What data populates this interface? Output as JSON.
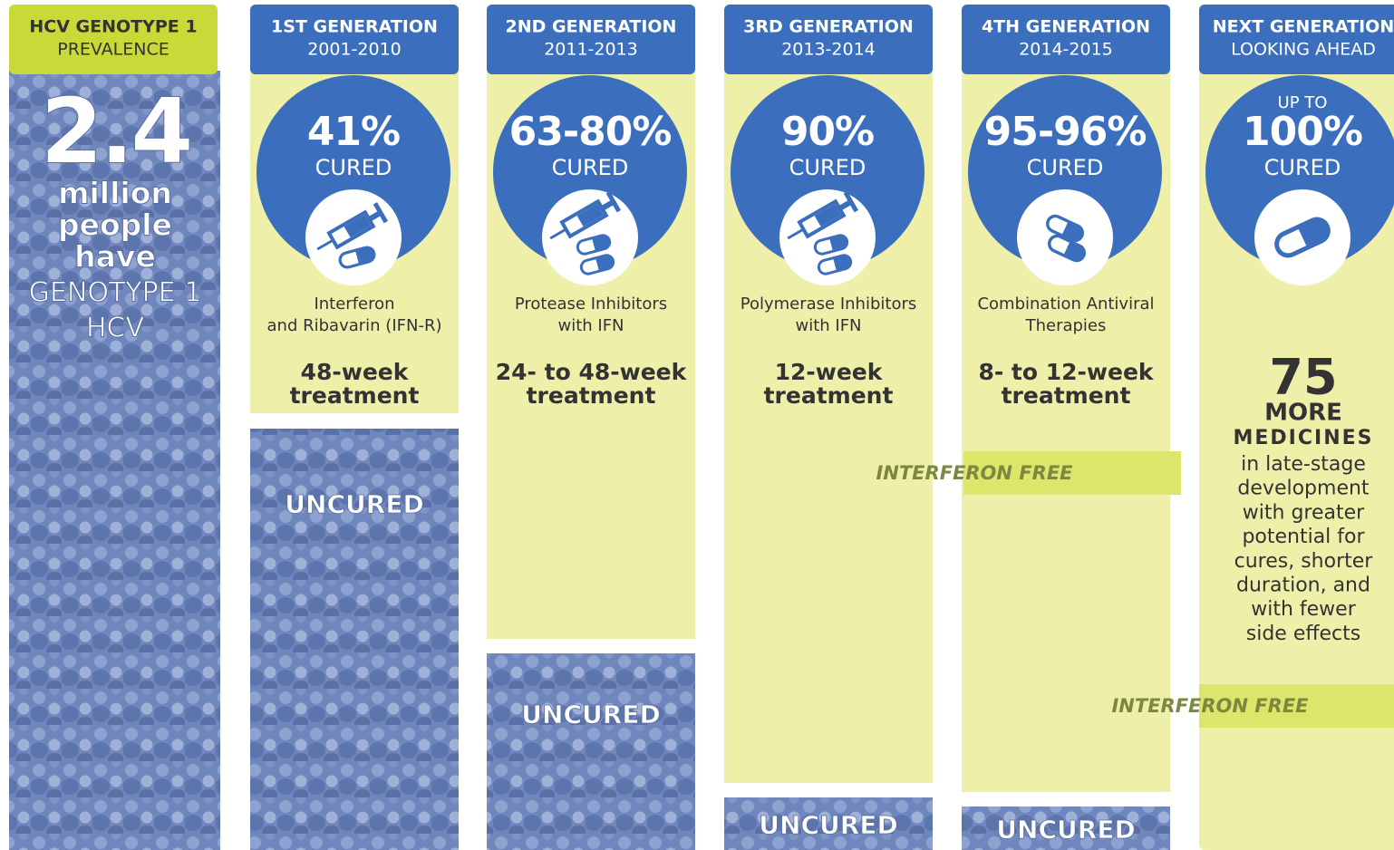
{
  "prevalence": {
    "header": [
      "HCV GENOTYPE 1",
      "PREVALENCE"
    ],
    "number": "2.4",
    "lines": [
      "million",
      "people",
      "have",
      "GENOTYPE 1",
      "HCV"
    ]
  },
  "generations": [
    {
      "header": [
        "1ST GENERATION",
        "2001-2010"
      ],
      "percent": "41%",
      "cured": "CURED",
      "therapy": [
        "Interferon",
        "and Ribavarin (IFN-R)"
      ],
      "treatment": [
        "48-week",
        "treatment"
      ],
      "uncured": "UNCURED"
    },
    {
      "header": [
        "2ND GENERATION",
        "2011-2013"
      ],
      "percent": "63-80%",
      "cured": "CURED",
      "therapy": [
        "Protease Inhibitors",
        "with IFN"
      ],
      "treatment": [
        "24- to 48-week",
        "treatment"
      ],
      "uncured": "UNCURED"
    },
    {
      "header": [
        "3RD GENERATION",
        "2013-2014"
      ],
      "percent": "90%",
      "cured": "CURED",
      "therapy": [
        "Polymerase Inhibitors",
        "with IFN"
      ],
      "treatment": [
        "12-week",
        "treatment"
      ],
      "uncured": "UNCURED"
    },
    {
      "header": [
        "4TH GENERATION",
        "2014-2015"
      ],
      "percent": "95-96%",
      "cured": "CURED",
      "therapy": [
        "Combination Antiviral",
        "Therapies"
      ],
      "treatment": [
        "8- to 12-week",
        "treatment"
      ],
      "badge": "INTERFERON FREE",
      "uncured": "UNCURED"
    }
  ],
  "next": {
    "header": [
      "NEXT GENERATION",
      "LOOKING AHEAD"
    ],
    "prefix": "UP TO",
    "percent": "100%",
    "cured": "CURED",
    "count": "75",
    "more": "MORE",
    "medicines": "MEDICINES",
    "description": [
      "in late-stage",
      "development",
      "with greater",
      "potential for",
      "cures, shorter",
      "duration, and",
      "with fewer",
      "side effects"
    ],
    "badge": "INTERFERON FREE"
  }
}
